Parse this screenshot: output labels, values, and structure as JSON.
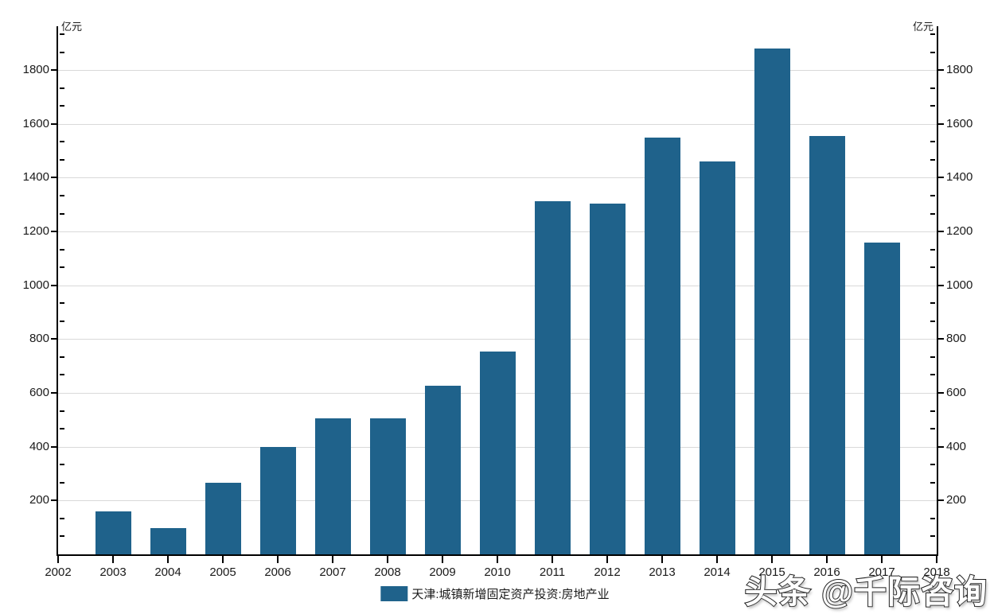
{
  "page": {
    "background": "#ffffff"
  },
  "axes": {
    "left_unit": "亿元",
    "right_unit": "亿元",
    "y_tick_labels": [
      "200",
      "400",
      "600",
      "800",
      "1000",
      "1200",
      "1400",
      "1600",
      "1800"
    ],
    "x_tick_labels": [
      "2002",
      "2003",
      "2004",
      "2005",
      "2006",
      "2007",
      "2008",
      "2009",
      "2010",
      "2011",
      "2012",
      "2013",
      "2014",
      "2015",
      "2016",
      "2017",
      "2018"
    ]
  },
  "legend": {
    "label": "天津:城镇新增固定资产投资:房地产业",
    "swatch_color": "#1F628B"
  },
  "watermark": {
    "text": "头条 @千际咨询"
  },
  "chart_data": {
    "type": "bar",
    "title": "",
    "xlabel": "",
    "ylabel": "亿元",
    "categories": [
      "2003",
      "2004",
      "2005",
      "2006",
      "2007",
      "2008",
      "2009",
      "2010",
      "2011",
      "2012",
      "2013",
      "2014",
      "2015",
      "2016",
      "2017"
    ],
    "values": [
      160,
      98,
      267,
      400,
      507,
      505,
      627,
      754,
      1312,
      1305,
      1549,
      1460,
      1880,
      1555,
      1158
    ],
    "series_name": "天津:城镇新增固定资产投资:房地产业",
    "x_domain": [
      "2002",
      "2018"
    ],
    "ylim": [
      0,
      1963
    ],
    "y_major_step": 200,
    "y_minor_divisions_per_major": 3,
    "grid": true,
    "dual_y_axis": true,
    "bar_color": "#1F628B",
    "gridline_color": "#d9d9d9",
    "axis_color": "#000000",
    "legend_position": "bottom-center"
  }
}
